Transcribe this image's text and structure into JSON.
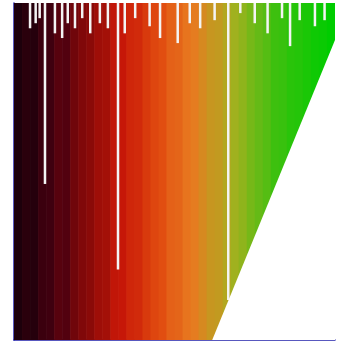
{
  "chart_data": {
    "type": "heatmap",
    "xlim": [
      0,
      40
    ],
    "ylim": [
      0,
      100
    ],
    "tick_labels": false,
    "grid": false,
    "columns": [
      2,
      5,
      4,
      9,
      10,
      15,
      14,
      20,
      23,
      25,
      29,
      30,
      36,
      37,
      41,
      42,
      46,
      49,
      51,
      56,
      57,
      61,
      63,
      66,
      69,
      70,
      73,
      76,
      78,
      81,
      83,
      85,
      88,
      89,
      92,
      93,
      95,
      97,
      98,
      100
    ],
    "colorbar_range": [
      0,
      100
    ],
    "streaks": [
      [
        2.0,
        92.5
      ],
      [
        2.7,
        94.0
      ],
      [
        3.2,
        95.5
      ],
      [
        3.86,
        46.3
      ],
      [
        5.1,
        91.0
      ],
      [
        6.0,
        89.6
      ],
      [
        6.7,
        94.0
      ],
      [
        7.6,
        92.5
      ],
      [
        8.5,
        95.5
      ],
      [
        9.5,
        91.0
      ],
      [
        10.7,
        94.0
      ],
      [
        11.7,
        92.5
      ],
      [
        12.96,
        20.9
      ],
      [
        13.8,
        91.0
      ],
      [
        15.1,
        95.5
      ],
      [
        16.9,
        93.1
      ],
      [
        18.2,
        89.6
      ],
      [
        20.4,
        88.1
      ],
      [
        21.9,
        94.0
      ],
      [
        23.2,
        92.5
      ],
      [
        25.0,
        94.9
      ],
      [
        26.7,
        11.9
      ],
      [
        28.2,
        97.0
      ],
      [
        30.0,
        94.0
      ],
      [
        31.6,
        91.0
      ],
      [
        33.4,
        95.5
      ],
      [
        34.4,
        87.2
      ],
      [
        35.6,
        94.9
      ],
      [
        37.5,
        93.1
      ],
      [
        38.7,
        94.9
      ]
    ],
    "cutoff": [
      [
        24.7,
        0
      ],
      [
        40,
        89
      ]
    ]
  }
}
